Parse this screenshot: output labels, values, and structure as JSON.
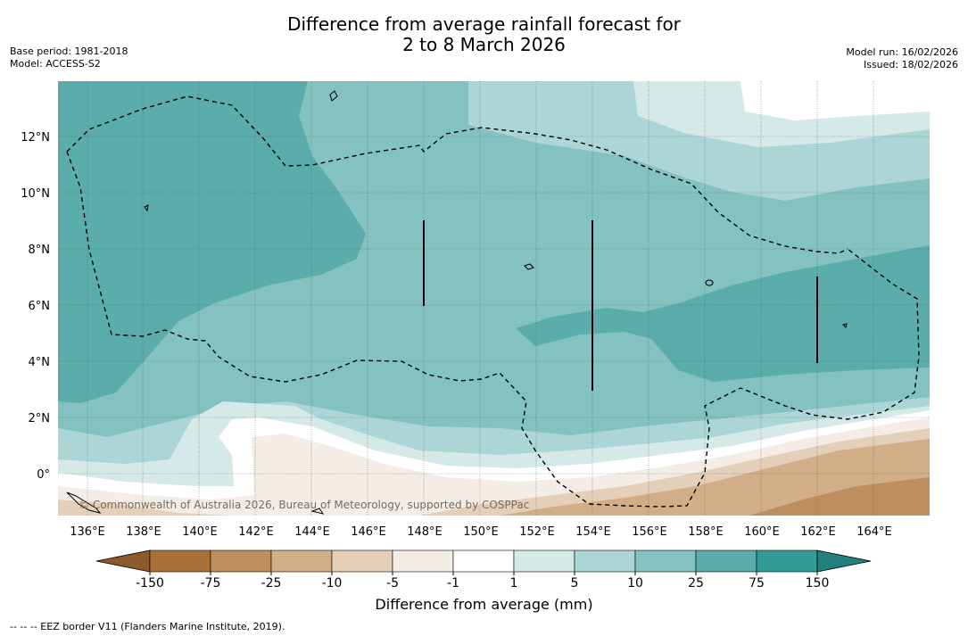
{
  "title": {
    "line1": "Difference from average rainfall forecast for",
    "line2": "2 to 8 March 2026"
  },
  "meta_left": {
    "base_period": "Base period: 1981-2018",
    "model": "Model: ACCESS-S2"
  },
  "meta_right": {
    "model_run": "Model run: 16/02/2026",
    "issued": "Issued: 18/02/2026"
  },
  "map": {
    "x_ticks": [
      "136°E",
      "138°E",
      "140°E",
      "142°E",
      "144°E",
      "146°E",
      "148°E",
      "150°E",
      "152°E",
      "154°E",
      "156°E",
      "158°E",
      "160°E",
      "162°E",
      "164°E"
    ],
    "y_ticks": [
      "12°N",
      "10°N",
      "8°N",
      "6°N",
      "4°N",
      "2°N",
      "0°"
    ],
    "copyright": "© Commonwealth of Australia 2026, Bureau of Meteorology, supported by COSPPac"
  },
  "colorbar": {
    "labels": [
      "-150",
      "-75",
      "-25",
      "-10",
      "-5",
      "-1",
      "1",
      "5",
      "10",
      "25",
      "75",
      "150"
    ],
    "colors": {
      "below_min": "#8b5a2b",
      "bins": [
        "#a97138",
        "#be8f5e",
        "#d2ae88",
        "#e4cfb9",
        "#f3ede6",
        "#ffffff",
        "#d5e9e8",
        "#acd6d5",
        "#83c2c0",
        "#5aadaa",
        "#339b98"
      ],
      "above_max": "#237f7c"
    },
    "title": "Difference from average (mm)"
  },
  "footnote": "--  --  -- EEZ border V11 (Flanders Marine Institute, 2019)."
}
